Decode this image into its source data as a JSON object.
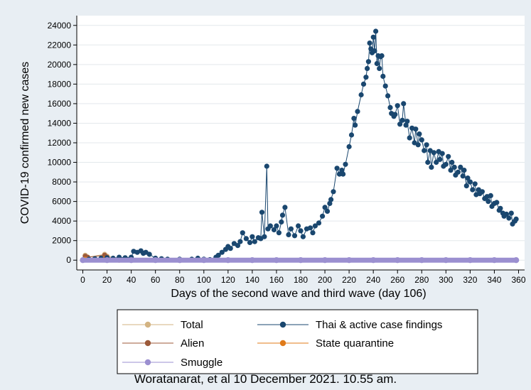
{
  "chart_data": {
    "type": "line",
    "xlabel": "Days of the second wave and third wave (day 106)",
    "ylabel": "COVID-19 confirmed new cases",
    "xlim": [
      -5,
      365
    ],
    "ylim": [
      -1000,
      25000
    ],
    "xticks": [
      0,
      20,
      40,
      60,
      80,
      100,
      120,
      140,
      160,
      180,
      200,
      220,
      240,
      260,
      280,
      300,
      320,
      340,
      360
    ],
    "yticks": [
      0,
      2000,
      4000,
      6000,
      8000,
      10000,
      12000,
      14000,
      16000,
      18000,
      20000,
      22000,
      24000
    ],
    "grid": "horizontal",
    "legend_position": "bottom",
    "colors": {
      "total": "#d3b382",
      "thai": "#1a476f",
      "alien": "#9c5a3a",
      "state_quarantine": "#e07b1a",
      "smuggle": "#9b8fd0",
      "background": "#e8eef3",
      "plot_area": "#ffffff"
    },
    "series": [
      {
        "name": "Total",
        "x": [
          0,
          2,
          4,
          18,
          20,
          40,
          60,
          100,
          140,
          200,
          260,
          320,
          358
        ],
        "y": [
          0,
          500,
          300,
          600,
          400,
          0,
          0,
          0,
          0,
          0,
          0,
          0,
          0
        ]
      },
      {
        "name": "Thai & active case findings",
        "x": [
          0,
          5,
          10,
          15,
          20,
          25,
          30,
          35,
          40,
          42,
          45,
          48,
          50,
          52,
          55,
          60,
          65,
          70,
          80,
          90,
          95,
          100,
          105,
          110,
          112,
          115,
          118,
          120,
          122,
          125,
          128,
          130,
          132,
          135,
          138,
          140,
          142,
          145,
          147,
          148,
          150,
          152,
          153,
          155,
          158,
          160,
          162,
          164,
          165,
          167,
          170,
          172,
          175,
          178,
          180,
          182,
          185,
          188,
          190,
          192,
          195,
          198,
          200,
          202,
          204,
          205,
          207,
          210,
          212,
          214,
          215,
          217,
          220,
          222,
          224,
          225,
          227,
          230,
          232,
          234,
          235,
          236,
          237,
          238,
          239,
          240,
          241,
          242,
          243,
          244,
          245,
          246,
          247,
          248,
          250,
          252,
          254,
          255,
          257,
          258,
          260,
          262,
          264,
          265,
          267,
          268,
          270,
          272,
          274,
          275,
          277,
          278,
          280,
          282,
          284,
          285,
          287,
          288,
          290,
          292,
          294,
          295,
          297,
          298,
          300,
          302,
          304,
          305,
          307,
          308,
          310,
          312,
          314,
          315,
          317,
          318,
          320,
          322,
          324,
          325,
          327,
          328,
          330,
          332,
          334,
          335,
          337,
          338,
          340,
          342,
          344,
          345,
          347,
          348,
          350,
          352,
          354,
          355,
          357,
          358
        ],
        "y": [
          0,
          100,
          150,
          200,
          250,
          200,
          300,
          250,
          300,
          900,
          800,
          950,
          700,
          800,
          600,
          200,
          150,
          100,
          100,
          100,
          200,
          100,
          50,
          300,
          500,
          800,
          1100,
          1400,
          1200,
          1700,
          1500,
          1900,
          2800,
          2200,
          1800,
          2400,
          1900,
          2300,
          2200,
          4900,
          2400,
          9600,
          3200,
          3500,
          3100,
          3500,
          2800,
          3900,
          4600,
          5400,
          2600,
          3200,
          2500,
          3500,
          3000,
          2400,
          3200,
          3300,
          2800,
          3500,
          3800,
          4500,
          5400,
          5000,
          5800,
          6200,
          7000,
          9400,
          8800,
          9200,
          8800,
          9800,
          11600,
          12800,
          14500,
          13800,
          15200,
          16900,
          18000,
          18700,
          19600,
          20300,
          22200,
          21600,
          21200,
          22800,
          21400,
          23400,
          20100,
          20900,
          19600,
          20800,
          20900,
          18800,
          17800,
          16800,
          15600,
          15000,
          14700,
          14900,
          15800,
          13900,
          14300,
          16000,
          13800,
          14200,
          12500,
          13500,
          12000,
          13400,
          11800,
          12900,
          12300,
          11200,
          11800,
          10000,
          11200,
          9500,
          11000,
          10000,
          11100,
          10300,
          10900,
          9600,
          9800,
          10600,
          9200,
          10000,
          9500,
          8700,
          9000,
          9500,
          8600,
          9200,
          7600,
          8400,
          8000,
          7200,
          7800,
          6700,
          7200,
          6800,
          7000,
          6300,
          6500,
          6000,
          6600,
          5500,
          5800,
          5900,
          5100,
          5300,
          4800,
          4500,
          4700,
          4300,
          4800,
          3700,
          4000,
          4200
        ]
      },
      {
        "name": "Alien",
        "x": [
          0,
          2,
          4,
          18,
          20,
          30,
          60,
          120,
          200,
          280,
          358
        ],
        "y": [
          0,
          400,
          300,
          500,
          300,
          0,
          0,
          0,
          0,
          0,
          0
        ]
      },
      {
        "name": "State quarantine",
        "x": [
          0,
          2,
          4,
          18,
          20,
          40,
          100,
          200,
          300,
          358
        ],
        "y": [
          0,
          100,
          80,
          150,
          100,
          50,
          0,
          0,
          0,
          0
        ]
      },
      {
        "name": "Smuggle",
        "x": [
          0,
          20,
          40,
          60,
          80,
          100,
          120,
          140,
          160,
          180,
          200,
          220,
          240,
          260,
          280,
          300,
          320,
          340,
          358
        ],
        "y": [
          0,
          0,
          0,
          0,
          0,
          0,
          0,
          0,
          0,
          0,
          0,
          0,
          0,
          0,
          0,
          0,
          0,
          0,
          0
        ]
      }
    ]
  },
  "caption": "Woratanarat, et al 10 December 2021. 10.55 am."
}
